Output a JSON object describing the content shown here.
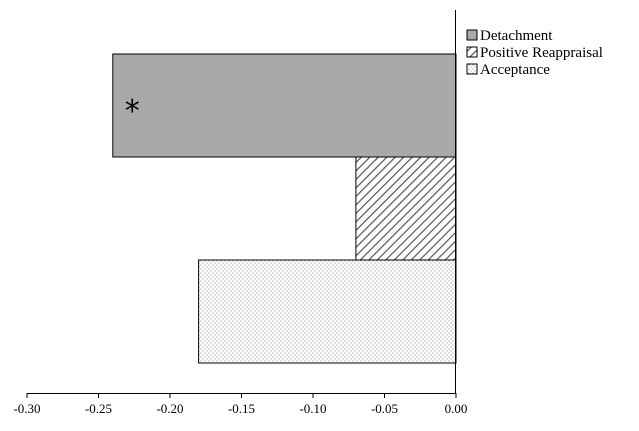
{
  "chart_data": {
    "type": "bar",
    "orientation": "horizontal",
    "title": "",
    "xlabel": "",
    "ylabel": "",
    "xlim": [
      -0.3,
      0.0
    ],
    "x_ticks": [
      "-0.30",
      "-0.25",
      "-0.20",
      "-0.15",
      "-0.10",
      "-0.05",
      "0.00"
    ],
    "x_tick_values": [
      -0.3,
      -0.25,
      -0.2,
      -0.15,
      -0.1,
      -0.05,
      0.0
    ],
    "grid": false,
    "legend_position": "top-right",
    "series": [
      {
        "name": "Detachment",
        "value": -0.24,
        "fill": "#a9a9a9",
        "pattern": "solid",
        "annotation": "*"
      },
      {
        "name": "Positive Reappraisal",
        "value": -0.07,
        "fill": "#ffffff",
        "pattern": "diagonal-hatch"
      },
      {
        "name": "Acceptance",
        "value": -0.18,
        "fill": "#ffffff",
        "pattern": "dots"
      }
    ]
  }
}
